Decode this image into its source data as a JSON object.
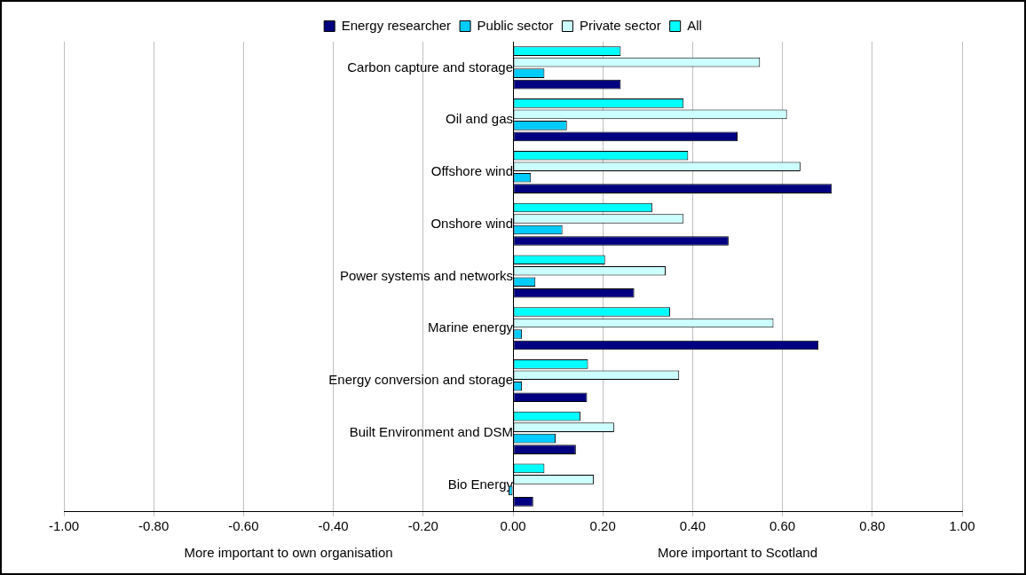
{
  "chart_data": {
    "type": "bar",
    "orientation": "horizontal",
    "categories": [
      "Carbon capture and storage",
      "Oil and gas",
      "Offshore wind",
      "Onshore wind",
      "Power systems and networks",
      "Marine energy",
      "Energy conversion and storage",
      "Built Environment and DSM",
      "Bio Energy"
    ],
    "series": [
      {
        "name": "Energy researcher",
        "color": "#000080",
        "values": [
          0.24,
          0.5,
          0.71,
          0.48,
          0.27,
          0.68,
          0.165,
          0.14,
          0.045
        ]
      },
      {
        "name": "Public sector",
        "color": "#00ccff",
        "values": [
          0.07,
          0.12,
          0.04,
          0.11,
          0.05,
          0.02,
          0.02,
          0.095,
          -0.01
        ]
      },
      {
        "name": "Private sector",
        "color": "#ccffff",
        "values": [
          0.55,
          0.61,
          0.64,
          0.38,
          0.34,
          0.58,
          0.37,
          0.225,
          0.18
        ]
      },
      {
        "name": "All",
        "color": "#00ffff",
        "values": [
          0.24,
          0.38,
          0.39,
          0.31,
          0.205,
          0.35,
          0.167,
          0.15,
          0.07
        ]
      }
    ],
    "xlim": [
      -1,
      1
    ],
    "xticks": [
      {
        "value": -1,
        "label": "-1.00"
      },
      {
        "value": -0.8,
        "label": "-0.80"
      },
      {
        "value": -0.6,
        "label": "-0.60"
      },
      {
        "value": -0.4,
        "label": "-0.40"
      },
      {
        "value": -0.2,
        "label": "-0.20"
      },
      {
        "value": 0,
        "label": "0.00"
      },
      {
        "value": 0.2,
        "label": "0.20"
      },
      {
        "value": 0.4,
        "label": "0.40"
      },
      {
        "value": 0.6,
        "label": "0.60"
      },
      {
        "value": 0.8,
        "label": "0.80"
      },
      {
        "value": 1,
        "label": "1.00"
      }
    ],
    "annotations": [
      "More important to own organisation",
      "More important to Scotland"
    ],
    "grid": "x",
    "legend": "top"
  }
}
